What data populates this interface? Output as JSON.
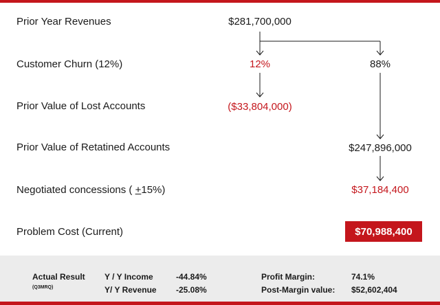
{
  "rows": {
    "prior_year_revenues": {
      "label": "Prior Year Revenues",
      "value": "$281,700,000"
    },
    "customer_churn": {
      "label": "Customer Churn (12%)",
      "value_churned": "12%",
      "value_retained": "88%"
    },
    "lost_accounts": {
      "label": "Prior Value of Lost Accounts",
      "value": "($33,804,000)"
    },
    "retained_accounts": {
      "label": "Prior Value of Retatined Accounts",
      "value": "$247,896,000"
    },
    "concessions": {
      "label_prefix": "Negotiated concessions ( ",
      "label_plusminus": "+",
      "label_suffix": "15%)",
      "value": "$37,184,400"
    },
    "problem_cost": {
      "label": "Problem Cost (Current)",
      "value": "$70,988,400"
    }
  },
  "footer": {
    "actual_result": "Actual Result",
    "actual_result_sub": "(Q3MRQ)",
    "yy_income_label": "Y / Y Income",
    "yy_income_value": "-44.84%",
    "yy_revenue_label": "Y/ Y Revenue",
    "yy_revenue_value": "-25.08%",
    "profit_margin_label": "Profit Margin:",
    "profit_margin_value": "74.1%",
    "post_margin_label": "Post-Margin value:",
    "post_margin_value": "$52,602,404"
  },
  "colors": {
    "accent": "#c4161c",
    "footer_bg": "#ececec",
    "text": "#1a1a1a"
  }
}
